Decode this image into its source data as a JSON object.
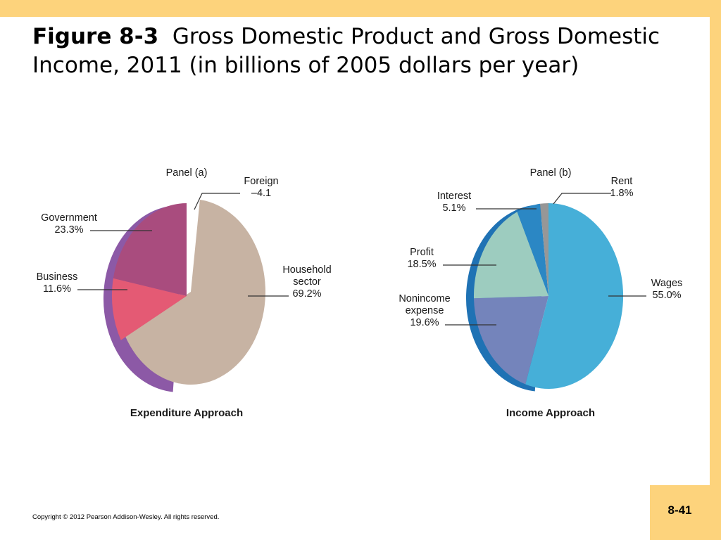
{
  "slide": {
    "title_bold": "Figure 8-3",
    "title_rest": "Gross Domestic Product and Gross Domestic Income, 2011 (in billions of 2005 dollars per year)",
    "copyright": "Copyright © 2012 Pearson Addison-Wesley. All rights reserved.",
    "page_number": "8-41"
  },
  "colors": {
    "background_band": "#fdd37c",
    "household": "#c7b3a3",
    "government": "#a94c7e",
    "business": "#e45a74",
    "government_side": "#8c59a6",
    "wages": "#46afd8",
    "nonincome": "#7484bb",
    "profit": "#9dccbf",
    "interest": "#2b87c4",
    "rent": "#979797",
    "income_side": "#1f72b4"
  },
  "chart_data": [
    {
      "type": "pie",
      "title": "Panel (a)",
      "caption": "Expenditure Approach",
      "slices": [
        {
          "label": "Household sector",
          "value": 69.2,
          "display": "69.2%",
          "label_lines": [
            "Household",
            "sector",
            "69.2%"
          ]
        },
        {
          "label": "Business",
          "value": 11.6,
          "display": "11.6%",
          "label_lines": [
            "Business",
            "11.6%"
          ]
        },
        {
          "label": "Government",
          "value": 23.3,
          "display": "23.3%",
          "label_lines": [
            "Government",
            "23.3%"
          ]
        },
        {
          "label": "Foreign",
          "value": -4.1,
          "display": "–4.1",
          "label_lines": [
            "Foreign",
            "–4.1"
          ]
        }
      ]
    },
    {
      "type": "pie",
      "title": "Panel (b)",
      "caption": "Income Approach",
      "slices": [
        {
          "label": "Wages",
          "value": 55.0,
          "display": "55.0%",
          "label_lines": [
            "Wages",
            "55.0%"
          ]
        },
        {
          "label": "Nonincome expense",
          "value": 19.6,
          "display": "19.6%",
          "label_lines": [
            "Nonincome",
            "expense",
            "19.6%"
          ]
        },
        {
          "label": "Profit",
          "value": 18.5,
          "display": "18.5%",
          "label_lines": [
            "Profit",
            "18.5%"
          ]
        },
        {
          "label": "Interest",
          "value": 5.1,
          "display": "5.1%",
          "label_lines": [
            "Interest",
            "5.1%"
          ]
        },
        {
          "label": "Rent",
          "value": 1.8,
          "display": "1.8%",
          "label_lines": [
            "Rent",
            "1.8%"
          ]
        }
      ]
    }
  ]
}
